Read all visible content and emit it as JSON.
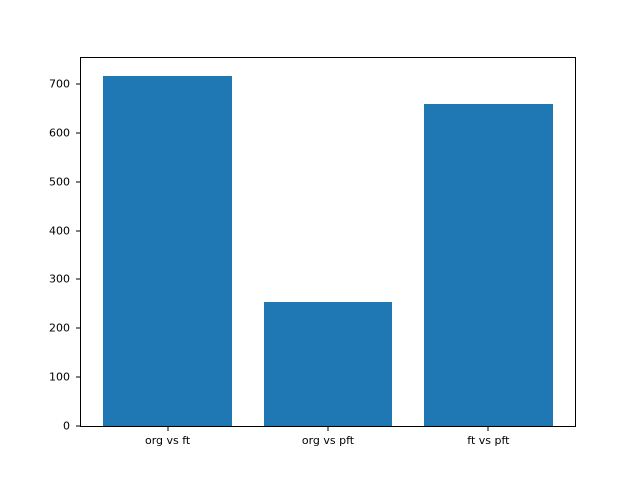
{
  "chart_data": {
    "type": "bar",
    "title": "",
    "xlabel": "",
    "ylabel": "",
    "categories": [
      "org vs ft",
      "org vs pft",
      "ft vs pft"
    ],
    "values": [
      717,
      253,
      658
    ],
    "yticks": [
      0,
      100,
      200,
      300,
      400,
      500,
      600,
      700
    ],
    "ylim": [
      0,
      753
    ],
    "xlim": [
      -0.54,
      2.54
    ],
    "bar_width": 0.8,
    "bar_color": "#1f77b4",
    "spine_color": "#000000",
    "tick_color": "#000000",
    "background_color": "#ffffff",
    "grid": false,
    "legend": null
  }
}
